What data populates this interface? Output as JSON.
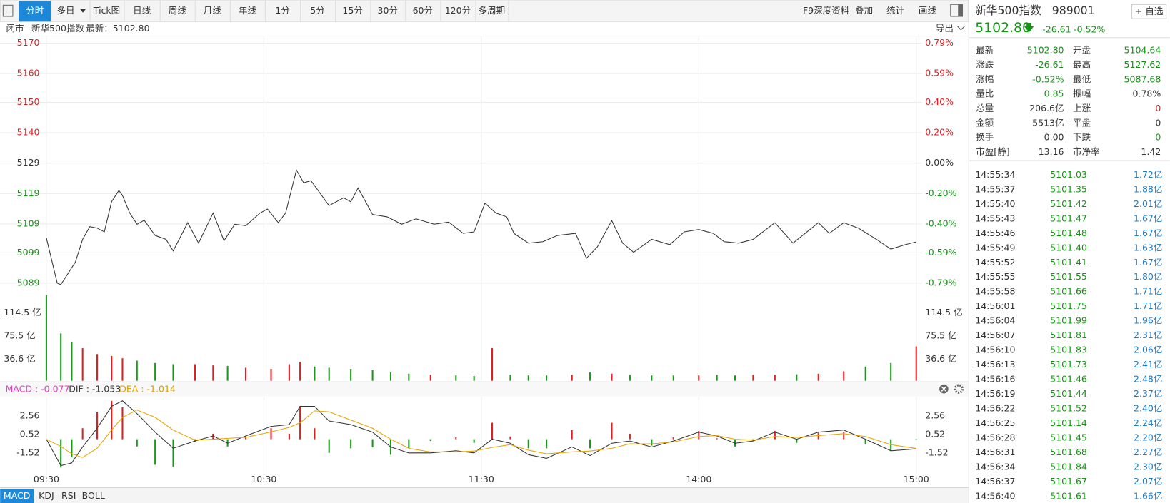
{
  "toolbar": {
    "tabs": [
      "分时",
      "多日",
      "Tick图",
      "日线",
      "周线",
      "月线",
      "年线",
      "1分",
      "5分",
      "15分",
      "30分",
      "60分",
      "120分",
      "多周期"
    ],
    "right_tools": [
      "F9深度资料",
      "叠加",
      "统计",
      "画线"
    ]
  },
  "info_bar": {
    "status": "闭市",
    "name": "新华500指数",
    "latest": "最新：5102.80",
    "export": "导出"
  },
  "price_chart": {
    "type": "line",
    "color": "#333333",
    "grid": true,
    "x": [
      0,
      3,
      4,
      6,
      8,
      10,
      12,
      14,
      16,
      18,
      20,
      21,
      23,
      25,
      27,
      30,
      33,
      35,
      39,
      42,
      46,
      49,
      52,
      55,
      59,
      61,
      64,
      66,
      69,
      71,
      73,
      78,
      82,
      84,
      86,
      90,
      94,
      98,
      102,
      107,
      111,
      115,
      118,
      121,
      124,
      127,
      129,
      133,
      137,
      141,
      146,
      149,
      152,
      156,
      159,
      162,
      167,
      172,
      176,
      180,
      184,
      187,
      191,
      195,
      201,
      206,
      213,
      216,
      220,
      224,
      229,
      233,
      237,
      240
    ],
    "values": [
      5104.17,
      5088.9,
      5088.4,
      5092.2,
      5096.0,
      5103.7,
      5108.0,
      5107.5,
      5106.2,
      5116.4,
      5120.2,
      5118.5,
      5112.6,
      5108.8,
      5110.1,
      5105.0,
      5103.7,
      5099.8,
      5109.3,
      5102.4,
      5112.6,
      5103.2,
      5108.8,
      5108.3,
      5112.6,
      5113.9,
      5109.3,
      5112.6,
      5127.1,
      5122.8,
      5123.5,
      5115.1,
      5117.7,
      5116.4,
      5121.0,
      5112.1,
      5111.3,
      5108.8,
      5110.6,
      5108.8,
      5109.5,
      5105.7,
      5106.2,
      5115.9,
      5112.6,
      5111.3,
      5105.7,
      5102.4,
      5102.9,
      5105.0,
      5105.7,
      5097.3,
      5101.1,
      5110.0,
      5102.4,
      5099.3,
      5103.7,
      5101.9,
      5106.2,
      5107.0,
      5105.7,
      5102.9,
      5102.4,
      5103.7,
      5109.3,
      5102.4,
      5109.3,
      5105.7,
      5109.3,
      5107.5,
      5103.7,
      5100.4,
      5101.9,
      5102.8
    ],
    "xlim": [
      0,
      240
    ],
    "xticks": [
      {
        "value": 0,
        "label": "09:30"
      },
      {
        "value": 60,
        "label": "10:30"
      },
      {
        "value": 120,
        "label": "11:30"
      },
      {
        "value": 180,
        "label": "14:00"
      },
      {
        "value": 240,
        "label": "15:00"
      }
    ],
    "ylim": [
      5088.89,
      5169.93
    ],
    "yticks": [
      {
        "value": 5169.93,
        "label": "5170"
      },
      {
        "value": 5159.67,
        "label": "5160"
      },
      {
        "value": 5149.93,
        "label": "5150"
      },
      {
        "value": 5139.67,
        "label": "5140"
      },
      {
        "value": 5129.41,
        "label": "5129"
      },
      {
        "value": 5119.15,
        "label": "5119"
      },
      {
        "value": 5108.89,
        "label": "5109"
      },
      {
        "value": 5099.15,
        "label": "5099"
      },
      {
        "value": 5088.89,
        "label": "5089"
      }
    ],
    "y2lim": [
      -0.79,
      0.79
    ],
    "y2ticks": [
      {
        "value": 0.79,
        "label": "0.79%"
      },
      {
        "value": 0.59,
        "label": "0.59%"
      },
      {
        "value": 0.4,
        "label": "0.40%"
      },
      {
        "value": 0.2,
        "label": "0.20%"
      },
      {
        "value": 0,
        "label": "0.00%"
      },
      {
        "value": -0.2,
        "label": "-0.20%"
      },
      {
        "value": -0.4,
        "label": "-0.40%"
      },
      {
        "value": -0.59,
        "label": "-0.59%"
      },
      {
        "value": -0.79,
        "label": "-0.79%"
      }
    ]
  },
  "volume_chart": {
    "type": "bar",
    "x": [
      0,
      4,
      7,
      10,
      14,
      18,
      21,
      25,
      30,
      35,
      41,
      46,
      50,
      55,
      62,
      67,
      70,
      74,
      78,
      84,
      90,
      95,
      100,
      106,
      113,
      118,
      123,
      128,
      133,
      138,
      145,
      150,
      156,
      161,
      167,
      173,
      180,
      185,
      190,
      195,
      201,
      207,
      213,
      220,
      226,
      233,
      240
    ],
    "values": [
      145,
      80,
      65,
      55,
      45,
      42,
      38,
      34,
      30,
      28,
      28,
      26,
      25,
      22,
      20,
      28,
      32,
      24,
      22,
      20,
      18,
      14,
      12,
      10,
      9,
      8,
      55,
      10,
      9,
      9,
      10,
      14,
      12,
      10,
      9,
      9,
      9,
      10,
      9,
      10,
      10,
      11,
      12,
      16,
      24,
      30,
      58
    ],
    "colors": [
      "#1a9a1a",
      "#1a9a1a",
      "#1a9a1a",
      "#e02020",
      "#e02020",
      "#e02020",
      "#e02020",
      "#1a9a1a",
      "#1a9a1a",
      "#1a9a1a",
      "#e02020",
      "#e02020",
      "#1a9a1a",
      "#e02020",
      "#e02020",
      "#e02020",
      "#e02020",
      "#1a9a1a",
      "#1a9a1a",
      "#1a9a1a",
      "#1a9a1a",
      "#1a9a1a",
      "#1a9a1a",
      "#e02020",
      "#1a9a1a",
      "#1a9a1a",
      "#e02020",
      "#1a9a1a",
      "#1a9a1a",
      "#1a9a1a",
      "#e02020",
      "#1a9a1a",
      "#e02020",
      "#1a9a1a",
      "#1a9a1a",
      "#1a9a1a",
      "#e02020",
      "#1a9a1a",
      "#1a9a1a",
      "#e02020",
      "#e02020",
      "#1a9a1a",
      "#e02020",
      "#e02020",
      "#1a9a1a",
      "#1a9a1a",
      "#e02020"
    ],
    "ylim": [
      0,
      146
    ],
    "yticks": [
      {
        "value": 114.5,
        "label": "114.5 亿"
      },
      {
        "value": 75.5,
        "label": "75.5 亿"
      },
      {
        "value": 36.6,
        "label": "36.6 亿"
      }
    ]
  },
  "macd_chart": {
    "type": "line",
    "legend": [
      "MACD : -0.077",
      "DIF : -1.053",
      "DEA : -1.014"
    ],
    "x": [
      0,
      4,
      7,
      10,
      14,
      18,
      21,
      25,
      30,
      35,
      41,
      46,
      50,
      55,
      62,
      67,
      70,
      74,
      78,
      84,
      90,
      95,
      100,
      106,
      113,
      118,
      123,
      128,
      133,
      138,
      145,
      150,
      156,
      161,
      167,
      173,
      180,
      185,
      190,
      195,
      201,
      207,
      213,
      220,
      226,
      233,
      240
    ],
    "series": [
      {
        "color": "#333333",
        "values": [
          0,
          -2.9,
          -2.6,
          -0.85,
          1.2,
          3.6,
          4.2,
          2.8,
          0.77,
          -1.0,
          -0.2,
          0.36,
          -0.44,
          0.36,
          1.4,
          1.6,
          3.6,
          3.6,
          2.0,
          1.6,
          0.77,
          -0.85,
          -1.5,
          -1.5,
          -1.27,
          -1.5,
          0,
          -0.44,
          -1.7,
          -2.1,
          -0.85,
          -1.8,
          -0.44,
          -0.2,
          -0.85,
          -0.2,
          0.77,
          0.36,
          -0.44,
          -0.2,
          0.77,
          0,
          0.77,
          1.0,
          0,
          -1.27,
          -1.053
        ]
      },
      {
        "color": "#e8a400",
        "values": [
          0,
          -0.8,
          -1.6,
          -2.0,
          -1.0,
          1.0,
          2.4,
          3.2,
          2.4,
          1.0,
          -0.1,
          0.0,
          0.1,
          0.2,
          0.8,
          1.3,
          1.8,
          3.1,
          3.0,
          2.1,
          1.2,
          0.0,
          -1.0,
          -1.4,
          -1.4,
          -1.3,
          -0.9,
          -0.6,
          -1.2,
          -1.6,
          -1.4,
          -1.3,
          -1.0,
          -0.5,
          -0.5,
          -0.3,
          0.3,
          0.4,
          0.0,
          -0.1,
          0.3,
          0.2,
          0.4,
          0.6,
          0.3,
          -0.6,
          -1.014
        ]
      },
      {
        "type": "bar",
        "up_color": "#e02020",
        "down_color": "#1a9a1a",
        "values": [
          0,
          -3.1,
          -2.0,
          1.2,
          3.0,
          4.2,
          3.5,
          -0.8,
          -2.8,
          -3.0,
          -0.3,
          0.6,
          -0.8,
          0.3,
          1.2,
          0.6,
          3.6,
          1.2,
          -1.5,
          -1.0,
          -0.9,
          -1.7,
          -1.0,
          -0.2,
          0.2,
          -0.4,
          1.8,
          0.3,
          -1.0,
          -1.0,
          1.0,
          -1.0,
          1.8,
          0.6,
          -0.7,
          0.2,
          0.9,
          0.1,
          -0.8,
          -0.2,
          0.9,
          -0.4,
          0.7,
          0.8,
          -0.5,
          -1.3,
          -0.077
        ]
      }
    ],
    "ylim": [
      -3.48,
      4.44
    ],
    "yticks": [
      2.56,
      0.52,
      -1.52
    ]
  },
  "indicator_tabs": [
    "MACD",
    "KDJ",
    "RSI",
    "BOLL"
  ],
  "quote": {
    "name": "新华500指数",
    "code": "989001",
    "watch": "+ 自选",
    "price": "5102.80",
    "arrow": "🡇",
    "change": "-26.61",
    "change_pct": "-0.52%"
  },
  "stats": [
    [
      "最新",
      "5102.80",
      "开盘",
      "5104.64"
    ],
    [
      "涨跌",
      "-26.61",
      "最高",
      "5127.62"
    ],
    [
      "涨幅",
      "-0.52%",
      "最低",
      "5087.68"
    ],
    [
      "量比",
      "0.85",
      "振幅",
      "0.78%"
    ],
    [
      "总量",
      "206.6亿",
      "上涨",
      "0"
    ],
    [
      "金额",
      "5513亿",
      "平盘",
      "0"
    ],
    [
      "换手",
      "0.00",
      "下跌",
      "0"
    ],
    [
      "市盈[静]",
      "13.16",
      "市净率",
      "1.42"
    ]
  ],
  "trades": [
    [
      "14:55:34",
      "5101.03",
      "1.72亿"
    ],
    [
      "14:55:37",
      "5101.35",
      "1.88亿"
    ],
    [
      "14:55:40",
      "5101.42",
      "2.01亿"
    ],
    [
      "14:55:43",
      "5101.47",
      "1.67亿"
    ],
    [
      "14:55:46",
      "5101.48",
      "1.67亿"
    ],
    [
      "14:55:49",
      "5101.40",
      "1.63亿"
    ],
    [
      "14:55:52",
      "5101.41",
      "1.67亿"
    ],
    [
      "14:55:55",
      "5101.55",
      "1.80亿"
    ],
    [
      "14:55:58",
      "5101.66",
      "1.71亿"
    ],
    [
      "14:56:01",
      "5101.75",
      "1.71亿"
    ],
    [
      "14:56:04",
      "5101.99",
      "1.96亿"
    ],
    [
      "14:56:07",
      "5101.81",
      "2.31亿"
    ],
    [
      "14:56:10",
      "5101.83",
      "2.06亿"
    ],
    [
      "14:56:13",
      "5101.73",
      "2.41亿"
    ],
    [
      "14:56:16",
      "5101.46",
      "2.48亿"
    ],
    [
      "14:56:19",
      "5101.44",
      "2.37亿"
    ],
    [
      "14:56:22",
      "5101.52",
      "2.40亿"
    ],
    [
      "14:56:25",
      "5101.14",
      "2.24亿"
    ],
    [
      "14:56:28",
      "5101.45",
      "2.20亿"
    ],
    [
      "14:56:31",
      "5101.68",
      "2.27亿"
    ],
    [
      "14:56:34",
      "5101.84",
      "2.30亿"
    ],
    [
      "14:56:37",
      "5101.67",
      "2.07亿"
    ],
    [
      "14:56:40",
      "5101.61",
      "1.66亿"
    ]
  ]
}
